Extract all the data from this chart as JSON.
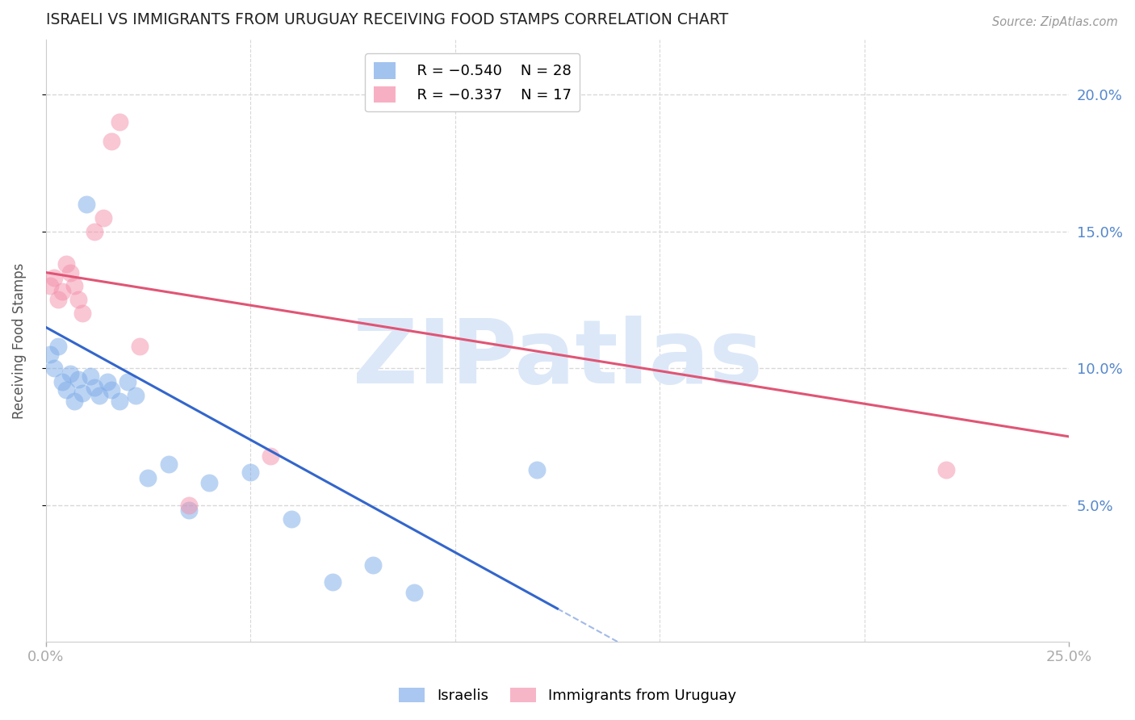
{
  "title": "ISRAELI VS IMMIGRANTS FROM URUGUAY RECEIVING FOOD STAMPS CORRELATION CHART",
  "source": "Source: ZipAtlas.com",
  "ylabel": "Receiving Food Stamps",
  "watermark": "ZIPatlas",
  "xlim": [
    0.0,
    0.25
  ],
  "ylim": [
    0.0,
    0.22
  ],
  "yticks": [
    0.05,
    0.1,
    0.15,
    0.2
  ],
  "ytick_labels": [
    "5.0%",
    "10.0%",
    "15.0%",
    "20.0%"
  ],
  "legend_blue_r": "R = −0.540",
  "legend_blue_n": "N = 28",
  "legend_pink_r": "R = −0.337",
  "legend_pink_n": "N = 17",
  "blue_color": "#7baae8",
  "pink_color": "#f48faa",
  "trend_blue_color": "#3366cc",
  "trend_pink_color": "#e05575",
  "background_color": "#ffffff",
  "grid_color": "#d8d8d8",
  "title_color": "#222222",
  "watermark_color": "#dce8f8",
  "right_axis_color": "#5588cc",
  "israelis_x": [
    0.001,
    0.002,
    0.003,
    0.004,
    0.005,
    0.006,
    0.007,
    0.008,
    0.009,
    0.01,
    0.011,
    0.012,
    0.013,
    0.015,
    0.016,
    0.018,
    0.02,
    0.022,
    0.025,
    0.03,
    0.035,
    0.04,
    0.05,
    0.06,
    0.07,
    0.08,
    0.09,
    0.12
  ],
  "israelis_y": [
    0.105,
    0.1,
    0.108,
    0.095,
    0.092,
    0.098,
    0.088,
    0.096,
    0.091,
    0.16,
    0.097,
    0.093,
    0.09,
    0.095,
    0.092,
    0.088,
    0.095,
    0.09,
    0.06,
    0.065,
    0.048,
    0.058,
    0.062,
    0.045,
    0.022,
    0.028,
    0.018,
    0.063
  ],
  "uruguay_x": [
    0.001,
    0.002,
    0.003,
    0.004,
    0.005,
    0.006,
    0.007,
    0.008,
    0.009,
    0.012,
    0.014,
    0.016,
    0.018,
    0.023,
    0.035,
    0.055,
    0.22
  ],
  "uruguay_y": [
    0.13,
    0.133,
    0.125,
    0.128,
    0.138,
    0.135,
    0.13,
    0.125,
    0.12,
    0.15,
    0.155,
    0.183,
    0.19,
    0.108,
    0.05,
    0.068,
    0.063
  ],
  "blue_trend_x0": 0.0,
  "blue_trend_y0": 0.115,
  "blue_trend_x1": 0.13,
  "blue_trend_y1": 0.008,
  "blue_trend_solid_end": 0.125,
  "blue_trend_dash_end": 0.175,
  "pink_trend_x0": 0.0,
  "pink_trend_y0": 0.135,
  "pink_trend_x1": 0.25,
  "pink_trend_y1": 0.075
}
